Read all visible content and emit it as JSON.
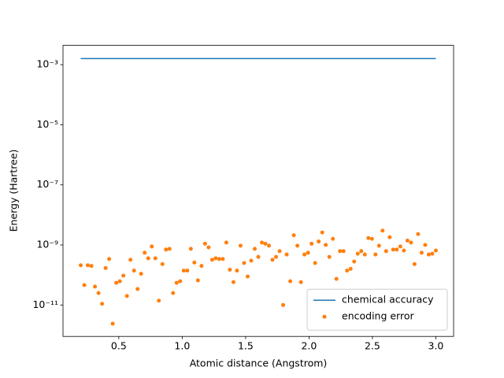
{
  "chart_data": {
    "type": "line",
    "xlabel": "Atomic distance (Angstrom)",
    "ylabel": "Energy (Hartree)",
    "yscale": "log",
    "xlim": [
      0.06,
      3.14
    ],
    "ylim": [
      9e-13,
      0.0044
    ],
    "xticks": [
      0.5,
      {
        "value": 1,
        "label": "1.0"
      },
      1.5,
      {
        "value": 2,
        "label": "2.0"
      },
      2.5,
      {
        "value": 3,
        "label": "3.0"
      }
    ],
    "yticks": [
      {
        "value": 1e-11,
        "label": "10⁻¹¹"
      },
      {
        "value": 1e-09,
        "label": "10⁻⁹"
      },
      {
        "value": 1e-07,
        "label": "10⁻⁷"
      },
      {
        "value": 1e-05,
        "label": "10⁻⁵"
      },
      {
        "value": 0.001,
        "label": "10⁻³"
      }
    ],
    "legend": "lower right",
    "series": [
      {
        "name": "chemical accuracy",
        "type": "line",
        "color": "#1f77b4",
        "x": [
          0.2,
          3.0
        ],
        "values": [
          0.0016,
          0.0016
        ]
      },
      {
        "name": "encoding error",
        "type": "scatter",
        "color": "#ff7f0e",
        "x": [
          0.2,
          0.228,
          0.256,
          0.284,
          0.312,
          0.34,
          0.368,
          0.396,
          0.424,
          0.452,
          0.48,
          0.508,
          0.536,
          0.564,
          0.592,
          0.62,
          0.648,
          0.676,
          0.704,
          0.732,
          0.76,
          0.788,
          0.816,
          0.844,
          0.872,
          0.9,
          0.928,
          0.956,
          0.984,
          1.012,
          1.04,
          1.068,
          1.096,
          1.124,
          1.152,
          1.18,
          1.208,
          1.236,
          1.264,
          1.292,
          1.32,
          1.348,
          1.376,
          1.404,
          1.432,
          1.46,
          1.488,
          1.516,
          1.544,
          1.572,
          1.6,
          1.628,
          1.656,
          1.684,
          1.712,
          1.74,
          1.768,
          1.796,
          1.824,
          1.852,
          1.88,
          1.908,
          1.936,
          1.964,
          1.992,
          2.02,
          2.048,
          2.076,
          2.104,
          2.132,
          2.16,
          2.188,
          2.216,
          2.244,
          2.272,
          2.3,
          2.328,
          2.356,
          2.384,
          2.412,
          2.44,
          2.468,
          2.496,
          2.524,
          2.552,
          2.58,
          2.608,
          2.636,
          2.664,
          2.692,
          2.72,
          2.748,
          2.776,
          2.804,
          2.832,
          2.86,
          2.888,
          2.916,
          2.944,
          2.972,
          3.0
        ],
        "values": [
          2.1e-10,
          4.6e-11,
          2.1e-10,
          2e-10,
          4.1e-11,
          2.5e-11,
          1.1e-11,
          1.7e-10,
          3.4e-10,
          2.4e-12,
          5.5e-11,
          6.2e-11,
          9.5e-11,
          2e-11,
          3.2e-10,
          1.4e-10,
          3.4e-11,
          1.1e-10,
          5.5e-10,
          3.6e-10,
          8.9e-10,
          3.6e-10,
          1.4e-11,
          2.3e-10,
          7e-10,
          7.4e-10,
          2.5e-11,
          5.5e-11,
          6.2e-11,
          1.4e-10,
          1.4e-10,
          7.4e-10,
          2.6e-10,
          6.6e-11,
          2e-10,
          1.1e-09,
          8.3e-10,
          3.2e-10,
          3.6e-10,
          3.4e-10,
          3.4e-10,
          1.2e-09,
          1.5e-10,
          5.8e-11,
          1.4e-10,
          9.4e-10,
          2.5e-10,
          8.9e-11,
          3e-10,
          7.4e-10,
          4e-10,
          1.2e-09,
          1.1e-09,
          9.4e-10,
          3.2e-10,
          4e-10,
          6.2e-10,
          1e-11,
          4.8e-10,
          6.2e-11,
          2.1e-09,
          9.4e-10,
          5.8e-11,
          4.8e-10,
          5.5e-10,
          1.1e-09,
          2.5e-10,
          1.3e-09,
          2.6e-09,
          1e-09,
          4e-10,
          1.6e-09,
          7.4e-11,
          6.2e-10,
          6.2e-10,
          1.4e-10,
          1.6e-10,
          2.8e-10,
          5.1e-10,
          6.2e-10,
          4.8e-10,
          1.7e-09,
          1.6e-09,
          4.8e-10,
          9.4e-10,
          3e-09,
          6.2e-10,
          1.8e-09,
          7e-10,
          7e-10,
          8.9e-10,
          6.5e-10,
          1.4e-09,
          1.2e-09,
          2.3e-10,
          2.3e-09,
          5.5e-10,
          1e-09,
          4.8e-10,
          5.1e-10,
          6.5e-10
        ]
      }
    ]
  }
}
